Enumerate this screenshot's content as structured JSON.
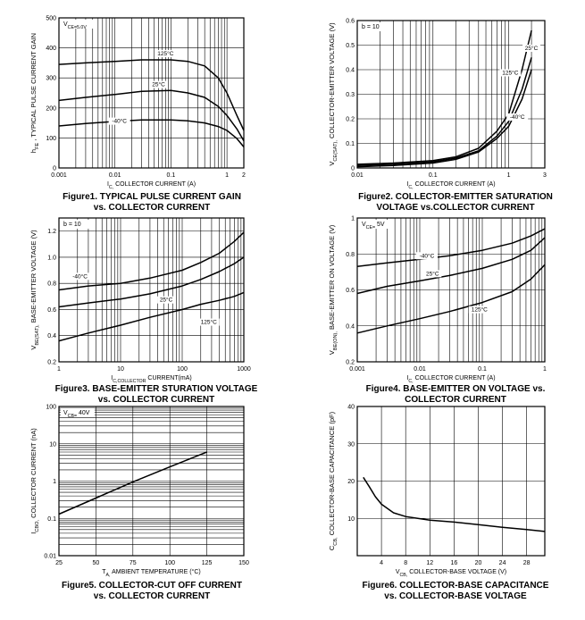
{
  "chart_data": [
    {
      "type": "line",
      "x_scale": "log",
      "y_scale": "linear",
      "xlim": [
        0.001,
        2
      ],
      "ylim": [
        0,
        500
      ],
      "x_ticks": [
        0.001,
        0.01,
        0.1,
        1,
        2
      ],
      "x_tick_labels": [
        "0.001",
        "0.01",
        "0.1",
        "1",
        "2"
      ],
      "y_ticks": [
        0,
        100,
        200,
        300,
        400,
        500
      ],
      "y_tick_labels": [
        "0",
        "100",
        "200",
        "300",
        "400",
        "500"
      ],
      "xlabel": "I_C, COLLECTOR CURRENT (A)",
      "ylabel": "h_FE , TYPICAL PULSE CURRENT GAIN",
      "annotation": "V_CE=5.0V",
      "caption": [
        "Figure1. TYPICAL PULSE CURRENT GAIN",
        "vs. COLLECTOR CURRENT"
      ],
      "grid": true,
      "series": [
        {
          "name": "125°C",
          "label_at": [
            0.08,
            375
          ],
          "points": [
            [
              0.001,
              345
            ],
            [
              0.003,
              350
            ],
            [
              0.01,
              355
            ],
            [
              0.03,
              360
            ],
            [
              0.1,
              360
            ],
            [
              0.2,
              355
            ],
            [
              0.4,
              340
            ],
            [
              0.7,
              300
            ],
            [
              1,
              250
            ],
            [
              1.5,
              175
            ],
            [
              2,
              125
            ]
          ]
        },
        {
          "name": "25°C",
          "label_at": [
            0.06,
            272
          ],
          "points": [
            [
              0.001,
              225
            ],
            [
              0.003,
              235
            ],
            [
              0.01,
              245
            ],
            [
              0.03,
              255
            ],
            [
              0.1,
              258
            ],
            [
              0.2,
              250
            ],
            [
              0.4,
              235
            ],
            [
              0.7,
              205
            ],
            [
              1,
              175
            ],
            [
              1.5,
              130
            ],
            [
              2,
              90
            ]
          ]
        },
        {
          "name": "-40°C",
          "label_at": [
            0.012,
            150
          ],
          "points": [
            [
              0.001,
              140
            ],
            [
              0.003,
              148
            ],
            [
              0.01,
              155
            ],
            [
              0.03,
              160
            ],
            [
              0.1,
              160
            ],
            [
              0.2,
              157
            ],
            [
              0.4,
              150
            ],
            [
              0.7,
              138
            ],
            [
              1,
              125
            ],
            [
              1.5,
              98
            ],
            [
              2,
              70
            ]
          ]
        }
      ]
    },
    {
      "type": "line",
      "x_scale": "log",
      "y_scale": "linear",
      "xlim": [
        0.01,
        3
      ],
      "ylim": [
        0,
        0.6
      ],
      "x_ticks": [
        0.01,
        0.1,
        1,
        3
      ],
      "x_tick_labels": [
        "0.01",
        "0.1",
        "1",
        "3"
      ],
      "y_ticks": [
        0,
        0.1,
        0.2,
        0.3,
        0.4,
        0.5,
        0.6
      ],
      "y_tick_labels": [
        "0",
        "0.1",
        "0.2",
        "0.3",
        "0.4",
        "0.5",
        "0.6"
      ],
      "xlabel": "I_C, COLLECTOR CURRENT (A)",
      "ylabel": "V_CE(SAT), COLLECTOR-EMITTER VOLTAGE (V)",
      "annotation": "b = 10",
      "caption": [
        "Figure2. COLLECTOR-EMITTER SATURATION",
        "VOLTAGE vs.COLLECTOR CURRENT"
      ],
      "grid": true,
      "series": [
        {
          "name": "25°C",
          "label_at": [
            2.0,
            0.48
          ],
          "points": [
            [
              0.01,
              0.015
            ],
            [
              0.03,
              0.02
            ],
            [
              0.1,
              0.03
            ],
            [
              0.2,
              0.045
            ],
            [
              0.4,
              0.08
            ],
            [
              0.7,
              0.15
            ],
            [
              1,
              0.22
            ],
            [
              1.5,
              0.4
            ],
            [
              2,
              0.56
            ]
          ]
        },
        {
          "name": "125°C",
          "label_at": [
            1.05,
            0.38
          ],
          "points": [
            [
              0.01,
              0.01
            ],
            [
              0.03,
              0.015
            ],
            [
              0.1,
              0.025
            ],
            [
              0.2,
              0.04
            ],
            [
              0.4,
              0.07
            ],
            [
              0.7,
              0.13
            ],
            [
              1,
              0.19
            ],
            [
              1.5,
              0.32
            ],
            [
              2,
              0.45
            ]
          ]
        },
        {
          "name": "-40°C",
          "label_at": [
            1.3,
            0.2
          ],
          "points": [
            [
              0.01,
              0.005
            ],
            [
              0.03,
              0.01
            ],
            [
              0.1,
              0.02
            ],
            [
              0.2,
              0.035
            ],
            [
              0.4,
              0.065
            ],
            [
              0.7,
              0.12
            ],
            [
              1,
              0.17
            ],
            [
              1.5,
              0.28
            ],
            [
              2,
              0.4
            ]
          ]
        }
      ]
    },
    {
      "type": "line",
      "x_scale": "log",
      "y_scale": "linear",
      "xlim": [
        1,
        1000
      ],
      "ylim": [
        0.2,
        1.3
      ],
      "x_ticks": [
        1,
        10,
        100,
        1000
      ],
      "x_tick_labels": [
        "1",
        "10",
        "100",
        "1000"
      ],
      "y_ticks": [
        0.2,
        0.4,
        0.6,
        0.8,
        1.0,
        1.2
      ],
      "y_tick_labels": [
        "0.2",
        "0.4",
        "0.6",
        "0.8",
        "1.0",
        "1.2"
      ],
      "xlabel": "I_C,COLLECTOR CURRENT(mA)",
      "ylabel": "V_BE(SAT), BASE-EMITTER VOLTAGE (V)",
      "annotation": "b = 10",
      "caption": [
        "Figure3. BASE-EMITTER STURATION VOLTAGE",
        "vs. COLLECTOR CURRENT"
      ],
      "grid": true,
      "series": [
        {
          "name": "-40°C",
          "label_at": [
            2.2,
            0.84
          ],
          "points": [
            [
              1,
              0.75
            ],
            [
              3,
              0.78
            ],
            [
              10,
              0.8
            ],
            [
              30,
              0.84
            ],
            [
              100,
              0.9
            ],
            [
              200,
              0.96
            ],
            [
              400,
              1.03
            ],
            [
              700,
              1.12
            ],
            [
              1000,
              1.19
            ]
          ]
        },
        {
          "name": "25°C",
          "label_at": [
            55,
            0.66
          ],
          "points": [
            [
              1,
              0.62
            ],
            [
              3,
              0.65
            ],
            [
              10,
              0.68
            ],
            [
              30,
              0.72
            ],
            [
              100,
              0.78
            ],
            [
              200,
              0.83
            ],
            [
              400,
              0.89
            ],
            [
              700,
              0.95
            ],
            [
              1000,
              1.0
            ]
          ]
        },
        {
          "name": "125°C",
          "label_at": [
            270,
            0.49
          ],
          "points": [
            [
              1,
              0.36
            ],
            [
              3,
              0.42
            ],
            [
              10,
              0.48
            ],
            [
              30,
              0.54
            ],
            [
              100,
              0.6
            ],
            [
              200,
              0.64
            ],
            [
              400,
              0.67
            ],
            [
              700,
              0.7
            ],
            [
              1000,
              0.73
            ]
          ]
        }
      ]
    },
    {
      "type": "line",
      "x_scale": "log",
      "y_scale": "linear",
      "xlim": [
        0.001,
        1
      ],
      "ylim": [
        0.2,
        1
      ],
      "x_ticks": [
        0.001,
        0.01,
        0.1,
        1
      ],
      "x_tick_labels": [
        "0.001",
        "0.01",
        "0.1",
        "1"
      ],
      "y_ticks": [
        0.2,
        0.4,
        0.6,
        0.8,
        1
      ],
      "y_tick_labels": [
        "0.2",
        "0.4",
        "0.6",
        "0.8",
        "1"
      ],
      "xlabel": "I_C, COLLECTOR CURRENT (A)",
      "ylabel": "V_BE(ON), BASE-EMITTER ON VOLTAGE (V)",
      "annotation": "V_CE= 5V",
      "caption": [
        "Figure4. BASE-EMITTER ON VOLTAGE vs.",
        "COLLECTOR CURRENT"
      ],
      "grid": true,
      "series": [
        {
          "name": "-40°C",
          "label_at": [
            0.013,
            0.78
          ],
          "points": [
            [
              0.001,
              0.73
            ],
            [
              0.003,
              0.75
            ],
            [
              0.01,
              0.77
            ],
            [
              0.03,
              0.79
            ],
            [
              0.1,
              0.82
            ],
            [
              0.3,
              0.86
            ],
            [
              0.6,
              0.9
            ],
            [
              1,
              0.94
            ]
          ]
        },
        {
          "name": "25°C",
          "label_at": [
            0.016,
            0.68
          ],
          "points": [
            [
              0.001,
              0.58
            ],
            [
              0.003,
              0.62
            ],
            [
              0.01,
              0.65
            ],
            [
              0.03,
              0.68
            ],
            [
              0.1,
              0.72
            ],
            [
              0.3,
              0.77
            ],
            [
              0.6,
              0.82
            ],
            [
              1,
              0.89
            ]
          ]
        },
        {
          "name": "125°C",
          "label_at": [
            0.09,
            0.48
          ],
          "points": [
            [
              0.001,
              0.36
            ],
            [
              0.003,
              0.4
            ],
            [
              0.01,
              0.44
            ],
            [
              0.03,
              0.48
            ],
            [
              0.1,
              0.53
            ],
            [
              0.3,
              0.59
            ],
            [
              0.6,
              0.66
            ],
            [
              1,
              0.74
            ]
          ]
        }
      ]
    },
    {
      "type": "line",
      "x_scale": "linear",
      "y_scale": "log",
      "xlim": [
        25,
        150
      ],
      "ylim": [
        0.01,
        100
      ],
      "x_ticks": [
        25,
        50,
        75,
        100,
        125,
        150
      ],
      "x_tick_labels": [
        "25",
        "50",
        "75",
        "100",
        "125",
        "150"
      ],
      "y_ticks": [
        0.01,
        0.1,
        1,
        10,
        100
      ],
      "y_tick_labels": [
        "0.01",
        "0.1",
        "1",
        "10",
        "100"
      ],
      "xlabel": "T_A, AMBIENT TEMPERATURE (°C)",
      "ylabel": "I_CBO, COLLECTOR CURRENT (nA)",
      "annotation": "V_CB= 40V",
      "caption": [
        "Figure5. COLLECTOR-CUT OFF CURRENT",
        "vs. COLLECTOR CURRENT"
      ],
      "grid": true,
      "series": [
        {
          "points": [
            [
              25,
              0.13
            ],
            [
              50,
              0.35
            ],
            [
              75,
              0.95
            ],
            [
              100,
              2.4
            ],
            [
              125,
              6.0
            ]
          ]
        }
      ]
    },
    {
      "type": "line",
      "x_scale": "linear",
      "y_scale": "linear",
      "xlim": [
        0,
        31
      ],
      "ylim": [
        0,
        40
      ],
      "x_ticks": [
        4,
        8,
        12,
        16,
        20,
        24,
        28
      ],
      "x_tick_labels": [
        "4",
        "8",
        "12",
        "16",
        "20",
        "24",
        "28"
      ],
      "y_ticks": [
        10,
        20,
        30,
        40
      ],
      "y_tick_labels": [
        "10",
        "20",
        "30",
        "40"
      ],
      "xlabel": "V_CB, COLLECTOR-BASE VOLTAGE (V)",
      "ylabel": "C_CB, COLLECTOR-BASE CAPACITANCE (pF)",
      "caption": [
        "Figure6. COLLECTOR-BASE CAPACITANCE",
        "vs. COLLECTOR-BASE VOLTAGE"
      ],
      "grid": true,
      "series": [
        {
          "points": [
            [
              1,
              21
            ],
            [
              2,
              18.5
            ],
            [
              3,
              15.8
            ],
            [
              4,
              13.8
            ],
            [
              6,
              11.5
            ],
            [
              8,
              10.5
            ],
            [
              12,
              9.5
            ],
            [
              16,
              9.0
            ],
            [
              20,
              8.3
            ],
            [
              24,
              7.6
            ],
            [
              28,
              7.0
            ],
            [
              31,
              6.5
            ]
          ]
        }
      ]
    }
  ]
}
